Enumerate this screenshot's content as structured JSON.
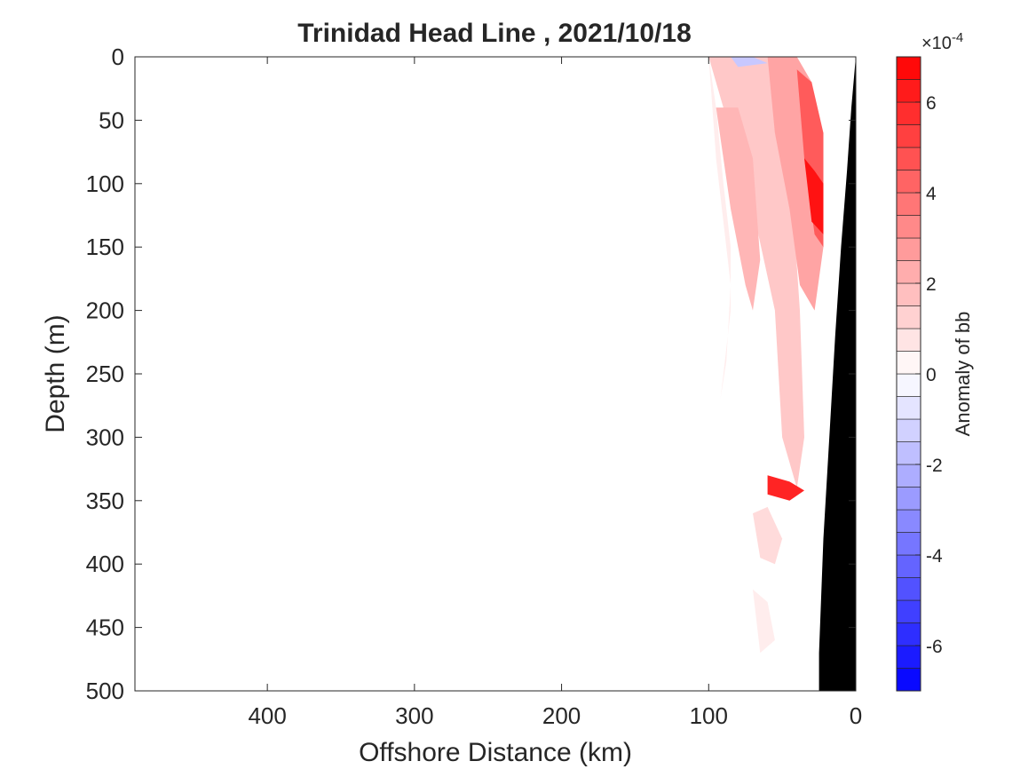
{
  "chart_data": {
    "type": "heatmap",
    "title": "Trinidad Head Line , 2021/10/18",
    "xlabel": "Offshore Distance (km)",
    "ylabel": "Depth (m)",
    "xlim": [
      490,
      0
    ],
    "ylim": [
      0,
      500
    ],
    "x_ticks": [
      "400",
      "300",
      "200",
      "100",
      "0"
    ],
    "y_ticks": [
      "0",
      "50",
      "100",
      "150",
      "200",
      "250",
      "300",
      "350",
      "400",
      "450",
      "500"
    ],
    "colorbar": {
      "label": "Anomaly of bb",
      "exponent_label": "×10",
      "exponent_power": "-4",
      "range": [
        -7,
        7
      ],
      "step": 0.5,
      "ticks": [
        "6",
        "4",
        "2",
        "0",
        "-2",
        "-4",
        "-6"
      ],
      "low_color": "#0000ff",
      "high_color": "#ff0000",
      "mid_color": "#ffffff"
    },
    "anomaly_regions_x1e4": [
      {
        "x": [
          100,
          95,
          90,
          85,
          85,
          90,
          92,
          88,
          85,
          95,
          100
        ],
        "depth": [
          0,
          40,
          100,
          150,
          200,
          250,
          270,
          240,
          180,
          80,
          0
        ],
        "value": 0.5
      },
      {
        "x": [
          100,
          60,
          45,
          38,
          35,
          40,
          50,
          55,
          70,
          85,
          100
        ],
        "depth": [
          0,
          0,
          80,
          200,
          300,
          340,
          300,
          200,
          120,
          60,
          0
        ],
        "value": 1.5
      },
      {
        "x": [
          95,
          80,
          70,
          65,
          70,
          75,
          85,
          95
        ],
        "depth": [
          40,
          40,
          80,
          160,
          200,
          180,
          120,
          40
        ],
        "value": 2.0
      },
      {
        "x": [
          60,
          40,
          30,
          22,
          22,
          28,
          38,
          45,
          55,
          60
        ],
        "depth": [
          0,
          0,
          20,
          80,
          150,
          200,
          180,
          120,
          60,
          0
        ],
        "value": 2.5
      },
      {
        "x": [
          40,
          30,
          22,
          22,
          28,
          35,
          40
        ],
        "depth": [
          10,
          20,
          60,
          150,
          140,
          80,
          10
        ],
        "value": 4.5
      },
      {
        "x": [
          35,
          28,
          22,
          22,
          30,
          35
        ],
        "depth": [
          80,
          90,
          100,
          140,
          130,
          80
        ],
        "value": 6.5
      },
      {
        "x": [
          60,
          45,
          35,
          45,
          60
        ],
        "depth": [
          330,
          335,
          342,
          350,
          345
        ],
        "value": 6.0
      },
      {
        "x": [
          70,
          60,
          50,
          55,
          65,
          70
        ],
        "depth": [
          360,
          355,
          380,
          400,
          395,
          360
        ],
        "value": 1.0
      },
      {
        "x": [
          70,
          60,
          55,
          65,
          70
        ],
        "depth": [
          420,
          430,
          460,
          470,
          420
        ],
        "value": 0.5
      },
      {
        "x": [
          85,
          70,
          60,
          80,
          85
        ],
        "depth": [
          0,
          0,
          5,
          8,
          0
        ],
        "value": -1.5
      }
    ],
    "bathymetry": {
      "x": [
        0,
        3,
        6,
        10,
        14,
        18,
        22,
        25,
        25,
        0
      ],
      "depth": [
        0,
        40,
        90,
        150,
        220,
        300,
        380,
        470,
        500,
        500
      ],
      "color": "#000000"
    }
  }
}
